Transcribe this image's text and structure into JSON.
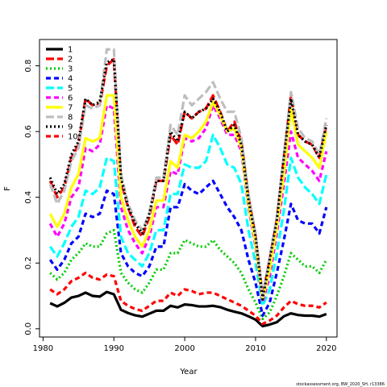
{
  "chart_data": {
    "type": "line",
    "title": "",
    "xlabel": "Year",
    "ylabel": "F",
    "xlim": [
      1979.5,
      2021.5
    ],
    "ylim": [
      -0.025,
      0.88
    ],
    "xticks": [
      1980,
      1990,
      2000,
      2010,
      2020
    ],
    "yticks": [
      0.0,
      0.2,
      0.4,
      0.6,
      0.8
    ],
    "legend_position": "top-left",
    "grid": false,
    "credit": "stockassessment.org, BW_2020_SH, r13386",
    "x": [
      1981,
      1982,
      1983,
      1984,
      1985,
      1986,
      1987,
      1988,
      1989,
      1990,
      1991,
      1992,
      1993,
      1994,
      1995,
      1996,
      1997,
      1998,
      1999,
      2000,
      2001,
      2002,
      2003,
      2004,
      2005,
      2006,
      2007,
      2008,
      2009,
      2010,
      2011,
      2012,
      2013,
      2014,
      2015,
      2016,
      2017,
      2018,
      2019,
      2020
    ],
    "series": [
      {
        "name": "1",
        "color": "#000000",
        "dash": "solid",
        "values": [
          0.078,
          0.068,
          0.079,
          0.095,
          0.1,
          0.11,
          0.1,
          0.098,
          0.112,
          0.105,
          0.058,
          0.048,
          0.041,
          0.037,
          0.046,
          0.055,
          0.055,
          0.07,
          0.065,
          0.074,
          0.072,
          0.068,
          0.068,
          0.07,
          0.066,
          0.058,
          0.052,
          0.047,
          0.038,
          0.028,
          0.008,
          0.013,
          0.02,
          0.038,
          0.047,
          0.042,
          0.04,
          0.04,
          0.037,
          0.045
        ]
      },
      {
        "name": "2",
        "color": "#ff0000",
        "dash": "longdash",
        "values": [
          0.45,
          0.4,
          0.43,
          0.52,
          0.56,
          0.7,
          0.68,
          0.68,
          0.8,
          0.82,
          0.45,
          0.37,
          0.31,
          0.28,
          0.34,
          0.45,
          0.45,
          0.59,
          0.56,
          0.66,
          0.64,
          0.66,
          0.67,
          0.71,
          0.66,
          0.6,
          0.63,
          0.57,
          0.4,
          0.28,
          0.1,
          0.21,
          0.33,
          0.52,
          0.71,
          0.59,
          0.57,
          0.56,
          0.52,
          0.62
        ]
      },
      {
        "name": "3",
        "color": "#00cd00",
        "dash": "dotted",
        "values": [
          0.17,
          0.15,
          0.17,
          0.21,
          0.23,
          0.26,
          0.25,
          0.25,
          0.29,
          0.3,
          0.17,
          0.14,
          0.12,
          0.11,
          0.14,
          0.18,
          0.18,
          0.23,
          0.23,
          0.27,
          0.26,
          0.25,
          0.25,
          0.27,
          0.24,
          0.22,
          0.2,
          0.17,
          0.12,
          0.08,
          0.03,
          0.05,
          0.1,
          0.16,
          0.23,
          0.21,
          0.19,
          0.19,
          0.17,
          0.21
        ]
      },
      {
        "name": "4",
        "color": "#0000ff",
        "dash": "dashed",
        "values": [
          0.21,
          0.18,
          0.21,
          0.26,
          0.28,
          0.35,
          0.34,
          0.35,
          0.42,
          0.41,
          0.23,
          0.19,
          0.17,
          0.16,
          0.19,
          0.25,
          0.25,
          0.37,
          0.37,
          0.44,
          0.42,
          0.41,
          0.43,
          0.45,
          0.41,
          0.37,
          0.34,
          0.3,
          0.21,
          0.14,
          0.04,
          0.08,
          0.17,
          0.27,
          0.38,
          0.33,
          0.32,
          0.32,
          0.29,
          0.37
        ]
      },
      {
        "name": "5",
        "color": "#00ffff",
        "dash": "longdash",
        "values": [
          0.25,
          0.22,
          0.26,
          0.31,
          0.34,
          0.42,
          0.41,
          0.43,
          0.52,
          0.51,
          0.28,
          0.23,
          0.21,
          0.19,
          0.23,
          0.3,
          0.3,
          0.41,
          0.41,
          0.5,
          0.49,
          0.49,
          0.51,
          0.59,
          0.55,
          0.5,
          0.49,
          0.44,
          0.3,
          0.2,
          0.07,
          0.12,
          0.23,
          0.36,
          0.52,
          0.46,
          0.43,
          0.41,
          0.38,
          0.47
        ]
      },
      {
        "name": "6",
        "color": "#ff00ff",
        "dash": "dashed",
        "values": [
          0.32,
          0.28,
          0.32,
          0.4,
          0.43,
          0.55,
          0.54,
          0.56,
          0.68,
          0.67,
          0.37,
          0.3,
          0.26,
          0.23,
          0.28,
          0.37,
          0.37,
          0.48,
          0.47,
          0.58,
          0.57,
          0.58,
          0.61,
          0.68,
          0.64,
          0.59,
          0.59,
          0.54,
          0.37,
          0.25,
          0.08,
          0.16,
          0.29,
          0.44,
          0.6,
          0.52,
          0.5,
          0.48,
          0.45,
          0.54
        ]
      },
      {
        "name": "7",
        "color": "#ffff00",
        "dash": "solid",
        "values": [
          0.35,
          0.31,
          0.35,
          0.43,
          0.47,
          0.58,
          0.57,
          0.58,
          0.71,
          0.71,
          0.4,
          0.33,
          0.28,
          0.25,
          0.3,
          0.39,
          0.39,
          0.51,
          0.49,
          0.59,
          0.58,
          0.6,
          0.63,
          0.69,
          0.65,
          0.6,
          0.61,
          0.55,
          0.38,
          0.26,
          0.09,
          0.18,
          0.31,
          0.47,
          0.67,
          0.56,
          0.54,
          0.52,
          0.49,
          0.6
        ]
      },
      {
        "name": "8",
        "color": "#bebebe",
        "dash": "longdash",
        "values": [
          0.44,
          0.38,
          0.42,
          0.51,
          0.55,
          0.68,
          0.67,
          0.68,
          0.85,
          0.85,
          0.47,
          0.38,
          0.33,
          0.3,
          0.35,
          0.46,
          0.46,
          0.62,
          0.59,
          0.71,
          0.68,
          0.7,
          0.72,
          0.75,
          0.7,
          0.66,
          0.66,
          0.58,
          0.41,
          0.29,
          0.1,
          0.22,
          0.34,
          0.53,
          0.72,
          0.61,
          0.58,
          0.57,
          0.53,
          0.64
        ]
      },
      {
        "name": "9",
        "color": "#000000",
        "dash": "dotted",
        "values": [
          0.46,
          0.41,
          0.44,
          0.53,
          0.57,
          0.7,
          0.68,
          0.69,
          0.81,
          0.82,
          0.46,
          0.37,
          0.32,
          0.29,
          0.35,
          0.45,
          0.45,
          0.6,
          0.57,
          0.66,
          0.64,
          0.66,
          0.67,
          0.7,
          0.66,
          0.6,
          0.62,
          0.56,
          0.39,
          0.28,
          0.09,
          0.21,
          0.33,
          0.52,
          0.7,
          0.59,
          0.57,
          0.56,
          0.52,
          0.62
        ]
      },
      {
        "name": "10",
        "color": "#ff0000",
        "dash": "dashed",
        "values": [
          0.12,
          0.105,
          0.12,
          0.145,
          0.155,
          0.17,
          0.155,
          0.15,
          0.165,
          0.16,
          0.085,
          0.07,
          0.06,
          0.055,
          0.07,
          0.085,
          0.085,
          0.11,
          0.1,
          0.12,
          0.115,
          0.105,
          0.11,
          0.11,
          0.1,
          0.09,
          0.08,
          0.07,
          0.055,
          0.04,
          0.015,
          0.025,
          0.04,
          0.065,
          0.085,
          0.075,
          0.07,
          0.07,
          0.065,
          0.08
        ]
      }
    ]
  }
}
